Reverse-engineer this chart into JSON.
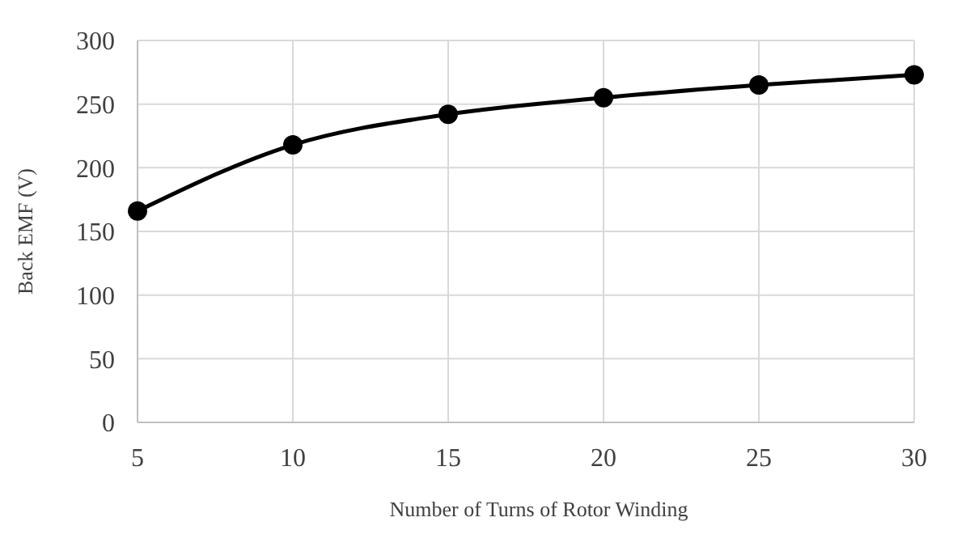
{
  "chart_data": {
    "type": "line",
    "xlabel": "Number of Turns of Rotor Winding",
    "ylabel": "Back EMF (V)",
    "x": [
      5,
      10,
      15,
      20,
      25,
      30
    ],
    "series": [
      {
        "color": "#000000",
        "values": [
          166,
          218,
          242,
          255,
          265,
          273
        ]
      }
    ],
    "xlim": [
      5,
      30
    ],
    "xticks": [
      5,
      10,
      15,
      20,
      25,
      30
    ],
    "ylim": [
      0,
      300
    ],
    "yticks": [
      0,
      50,
      100,
      150,
      200,
      250,
      300
    ],
    "grid": true,
    "marker": "circle",
    "line_style": "solid"
  }
}
